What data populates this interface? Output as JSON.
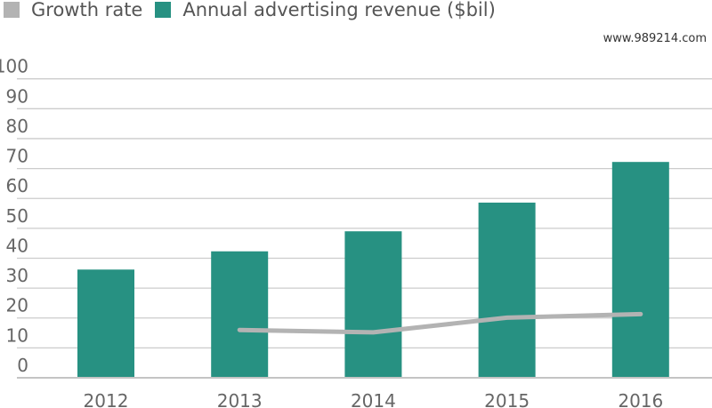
{
  "chart_data": {
    "type": "bar",
    "title": "",
    "xlabel": "",
    "ylabel": "",
    "categories": [
      "2012",
      "2013",
      "2014",
      "2015",
      "2016"
    ],
    "ylim": [
      0,
      100
    ],
    "yticks": [
      "0",
      "10",
      "20",
      "30",
      "40",
      "50",
      "60",
      "70",
      "80",
      "90",
      "100"
    ],
    "grid": true,
    "legend_position": "top-left",
    "series": [
      {
        "name": "Growth rate",
        "type": "line",
        "color": "#b3b3b3",
        "values": [
          null,
          16.0,
          15.2,
          20.1,
          21.3
        ]
      },
      {
        "name": "Annual advertising revenue ($bil)",
        "type": "bar",
        "color": "#279182",
        "values": [
          36.2,
          42.3,
          49.0,
          58.6,
          72.2
        ]
      }
    ]
  },
  "watermark": "www.989214.com"
}
